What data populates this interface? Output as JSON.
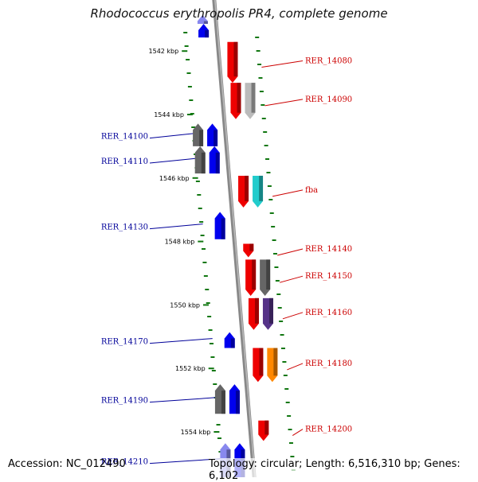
{
  "title": "Rhodococcus erythropolis PR4, complete genome",
  "footer": {
    "accession": "Accession: NC_012490",
    "topology": "Topology: circular; Length: 6,516,310 bp; Genes: 6,102"
  },
  "colors": {
    "red": "#ee0000",
    "blue": "#0000ee",
    "gray": "#666666",
    "lightgray": "#bbbbbb",
    "cyan": "#22cccc",
    "purple": "#553388",
    "orange": "#ff8800",
    "lavender": "#8888ee",
    "label_red": "#cc0000",
    "label_blue": "#000099",
    "tick_green": "#117711"
  },
  "kbp_ticks": [
    {
      "label": "1542 kbp",
      "pos": 0.06
    },
    {
      "label": "1544 kbp",
      "pos": 0.2
    },
    {
      "label": "1546 kbp",
      "pos": 0.34
    },
    {
      "label": "1548 kbp",
      "pos": 0.48
    },
    {
      "label": "1550 kbp",
      "pos": 0.62
    },
    {
      "label": "1552 kbp",
      "pos": 0.76
    },
    {
      "label": "1554 kbp",
      "pos": 0.9
    }
  ],
  "genes": [
    {
      "label": "",
      "strand": "-",
      "color": "lavender",
      "start": -0.02,
      "end": 0.0
    },
    {
      "label": "",
      "strand": "-",
      "color": "blue",
      "start": 0.0,
      "end": 0.03
    },
    {
      "label": "RER_14080",
      "strand": "+",
      "color": "red",
      "start": 0.04,
      "end": 0.13
    },
    {
      "label": "RER_14090",
      "strand": "+",
      "color": "red",
      "start": 0.13,
      "end": 0.21
    },
    {
      "label": "",
      "strand": "+",
      "color": "lightgray",
      "start": 0.13,
      "end": 0.21,
      "lane": 2
    },
    {
      "label": "RER_14100",
      "strand": "-",
      "color": "blue",
      "start": 0.22,
      "end": 0.27
    },
    {
      "label": "",
      "strand": "-",
      "color": "gray",
      "start": 0.22,
      "end": 0.27,
      "lane": 2
    },
    {
      "label": "RER_14110",
      "strand": "-",
      "color": "blue",
      "start": 0.27,
      "end": 0.33
    },
    {
      "label": "",
      "strand": "-",
      "color": "gray",
      "start": 0.27,
      "end": 0.33,
      "lane": 2
    },
    {
      "label": "fba",
      "strand": "+",
      "color": "red",
      "start": 0.335,
      "end": 0.405
    },
    {
      "label": "",
      "strand": "+",
      "color": "cyan",
      "start": 0.335,
      "end": 0.405,
      "lane": 2
    },
    {
      "label": "RER_14130",
      "strand": "-",
      "color": "blue",
      "start": 0.415,
      "end": 0.475
    },
    {
      "label": "RER_14140",
      "strand": "+",
      "color": "red",
      "start": 0.485,
      "end": 0.515
    },
    {
      "label": "RER_14150",
      "strand": "+",
      "color": "red",
      "start": 0.52,
      "end": 0.6
    },
    {
      "label": "",
      "strand": "+",
      "color": "gray",
      "start": 0.52,
      "end": 0.6,
      "lane": 2
    },
    {
      "label": "RER_14160",
      "strand": "+",
      "color": "red",
      "start": 0.605,
      "end": 0.675
    },
    {
      "label": "",
      "strand": "+",
      "color": "purple",
      "start": 0.605,
      "end": 0.675,
      "lane": 2
    },
    {
      "label": "RER_14170",
      "strand": "-",
      "color": "blue",
      "start": 0.68,
      "end": 0.715
    },
    {
      "label": "RER_14180",
      "strand": "+",
      "color": "red",
      "start": 0.715,
      "end": 0.79
    },
    {
      "label": "",
      "strand": "+",
      "color": "orange",
      "start": 0.715,
      "end": 0.79,
      "lane": 2
    },
    {
      "label": "RER_14190",
      "strand": "-",
      "color": "blue",
      "start": 0.795,
      "end": 0.86
    },
    {
      "label": "",
      "strand": "-",
      "color": "gray",
      "start": 0.795,
      "end": 0.86,
      "lane": 2
    },
    {
      "label": "RER_14200",
      "strand": "+",
      "color": "red",
      "start": 0.875,
      "end": 0.92
    },
    {
      "label": "RER_14210",
      "strand": "-",
      "color": "blue",
      "start": 0.925,
      "end": 1.0
    },
    {
      "label": "",
      "strand": "-",
      "color": "lavender",
      "start": 0.925,
      "end": 1.0,
      "lane": 2
    }
  ]
}
